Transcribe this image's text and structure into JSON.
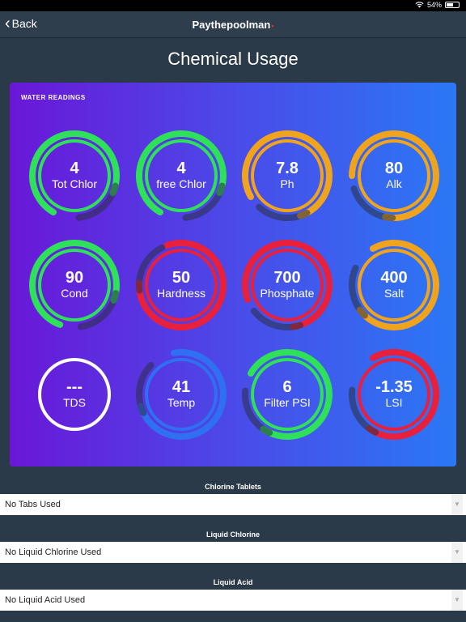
{
  "status": {
    "battery": "54%",
    "wifi_icon": "wifi-icon",
    "battery_level": 0.54
  },
  "nav": {
    "back_label": "Back",
    "title": "Paythepoolman",
    "title_dot": "•"
  },
  "page_title": "Chemical Usage",
  "readings": {
    "header": "WATER READINGS",
    "gauges": [
      {
        "value": "4",
        "label": "Tot Chlor",
        "color": "#2ee05a",
        "progress": 0.9,
        "start": -150
      },
      {
        "value": "4",
        "label": "free Chlor",
        "color": "#2ee05a",
        "progress": 0.9,
        "start": -150
      },
      {
        "value": "7.8",
        "label": "Ph",
        "color": "#f0a31c",
        "progress": 0.95,
        "start": -120
      },
      {
        "value": "80",
        "label": "Alk",
        "color": "#f0a31c",
        "progress": 0.95,
        "start": -90
      },
      {
        "value": "90",
        "label": "Cond",
        "color": "#2ee05a",
        "progress": 0.92,
        "start": -160
      },
      {
        "value": "50",
        "label": "Hardness",
        "color": "#e8203c",
        "progress": 0.98,
        "start": -20
      },
      {
        "value": "700",
        "label": "Phosphate",
        "color": "#e8203c",
        "progress": 0.95,
        "start": -110
      },
      {
        "value": "400",
        "label": "Salt",
        "color": "#f0a31c",
        "progress": 0.9,
        "start": -30
      },
      {
        "value": "---",
        "label": "TDS",
        "color": "#ffffff",
        "progress": 0,
        "start": 0
      },
      {
        "value": "41",
        "label": "Temp",
        "color": "#2f6ff2",
        "progress": 0.9,
        "start": -10
      },
      {
        "value": "6",
        "label": "Filter PSI",
        "color": "#2ee05a",
        "progress": 0.93,
        "start": -60
      },
      {
        "value": "-1.35",
        "label": "LSI",
        "color": "#e8203c",
        "progress": 0.85,
        "start": -30
      }
    ]
  },
  "chlorine_tablets": {
    "label": "Chlorine Tablets",
    "selected": "No Tabs Used"
  },
  "liquid_chlorine": {
    "label": "Liquid Chlorine",
    "selected": "No Liquid Chlorine Used"
  },
  "liquid_acid": {
    "label": "Liquid Acid",
    "selected": "No Liquid Acid Used"
  },
  "caret_icon": "chevron-down-icon"
}
